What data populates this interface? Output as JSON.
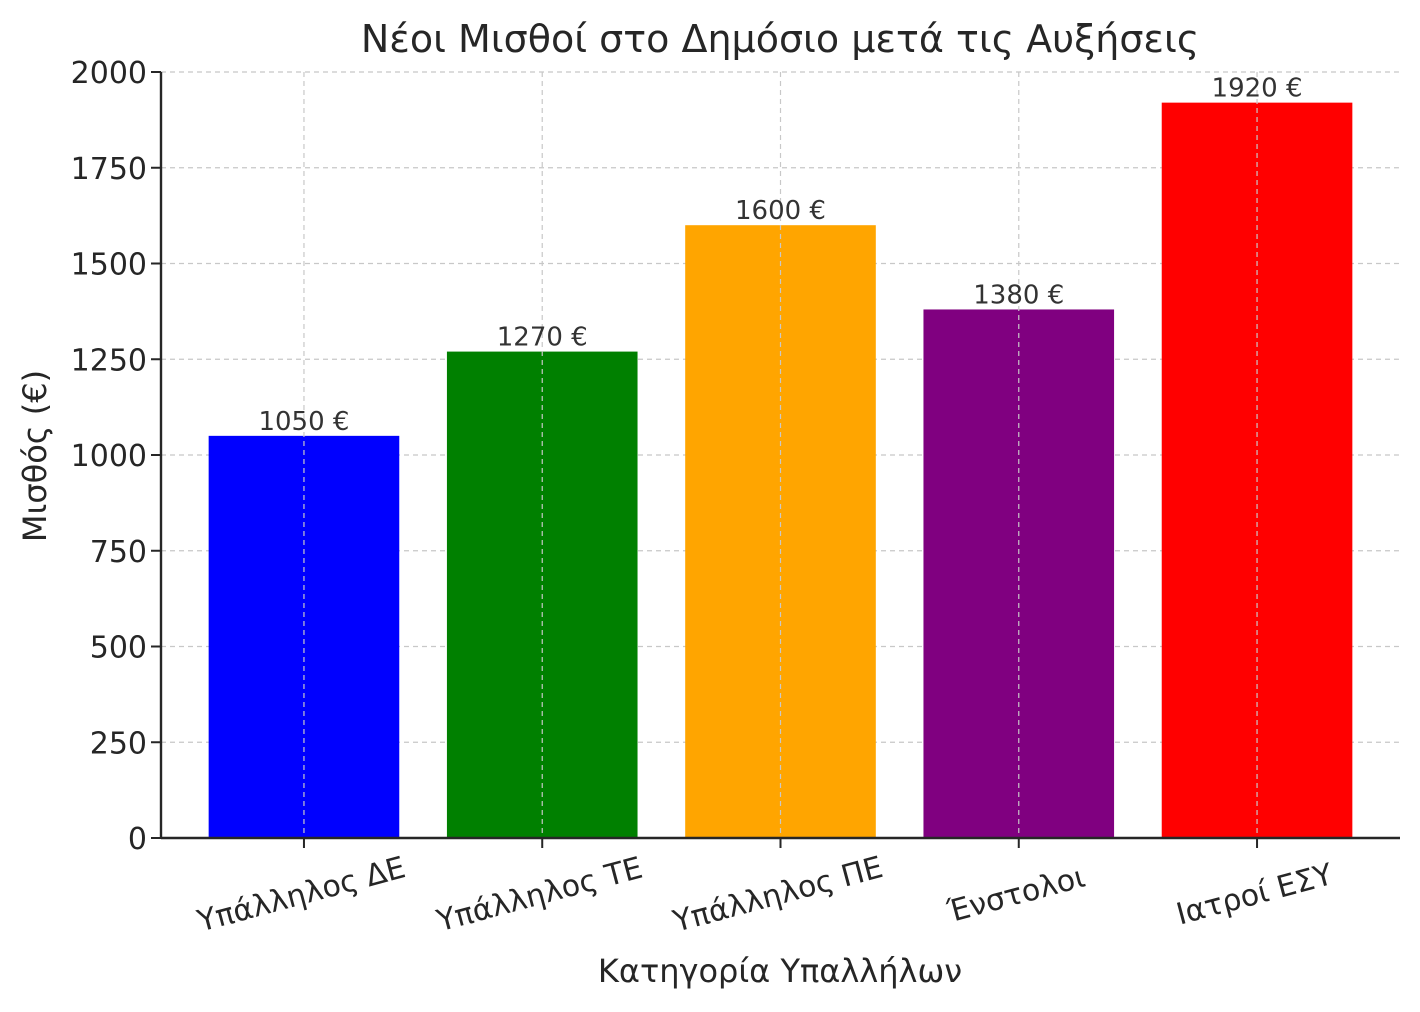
{
  "chart_data": {
    "type": "bar",
    "title": "Νέοι Μισθοί στο Δημόσιο μετά τις Αυξήσεις",
    "xlabel": "Κατηγορία Υπαλλήλων",
    "ylabel": "Μισθός (€)",
    "categories": [
      "Υπάλληλος ΔΕ",
      "Υπάλληλος ΤΕ",
      "Υπάλληλος ΠΕ",
      "Ένστολοι",
      "Ιατροί ΕΣΥ"
    ],
    "values": [
      1050,
      1270,
      1600,
      1380,
      1920
    ],
    "value_labels": [
      "1050 €",
      "1270 €",
      "1600 €",
      "1380 €",
      "1920 €"
    ],
    "colors": [
      "#0000ff",
      "#008000",
      "#ffa500",
      "#800080",
      "#ff0000"
    ],
    "ylim": [
      0,
      2000
    ],
    "yticks": [
      0,
      250,
      500,
      750,
      1000,
      1250,
      1500,
      1750,
      2000
    ],
    "grid": true
  }
}
